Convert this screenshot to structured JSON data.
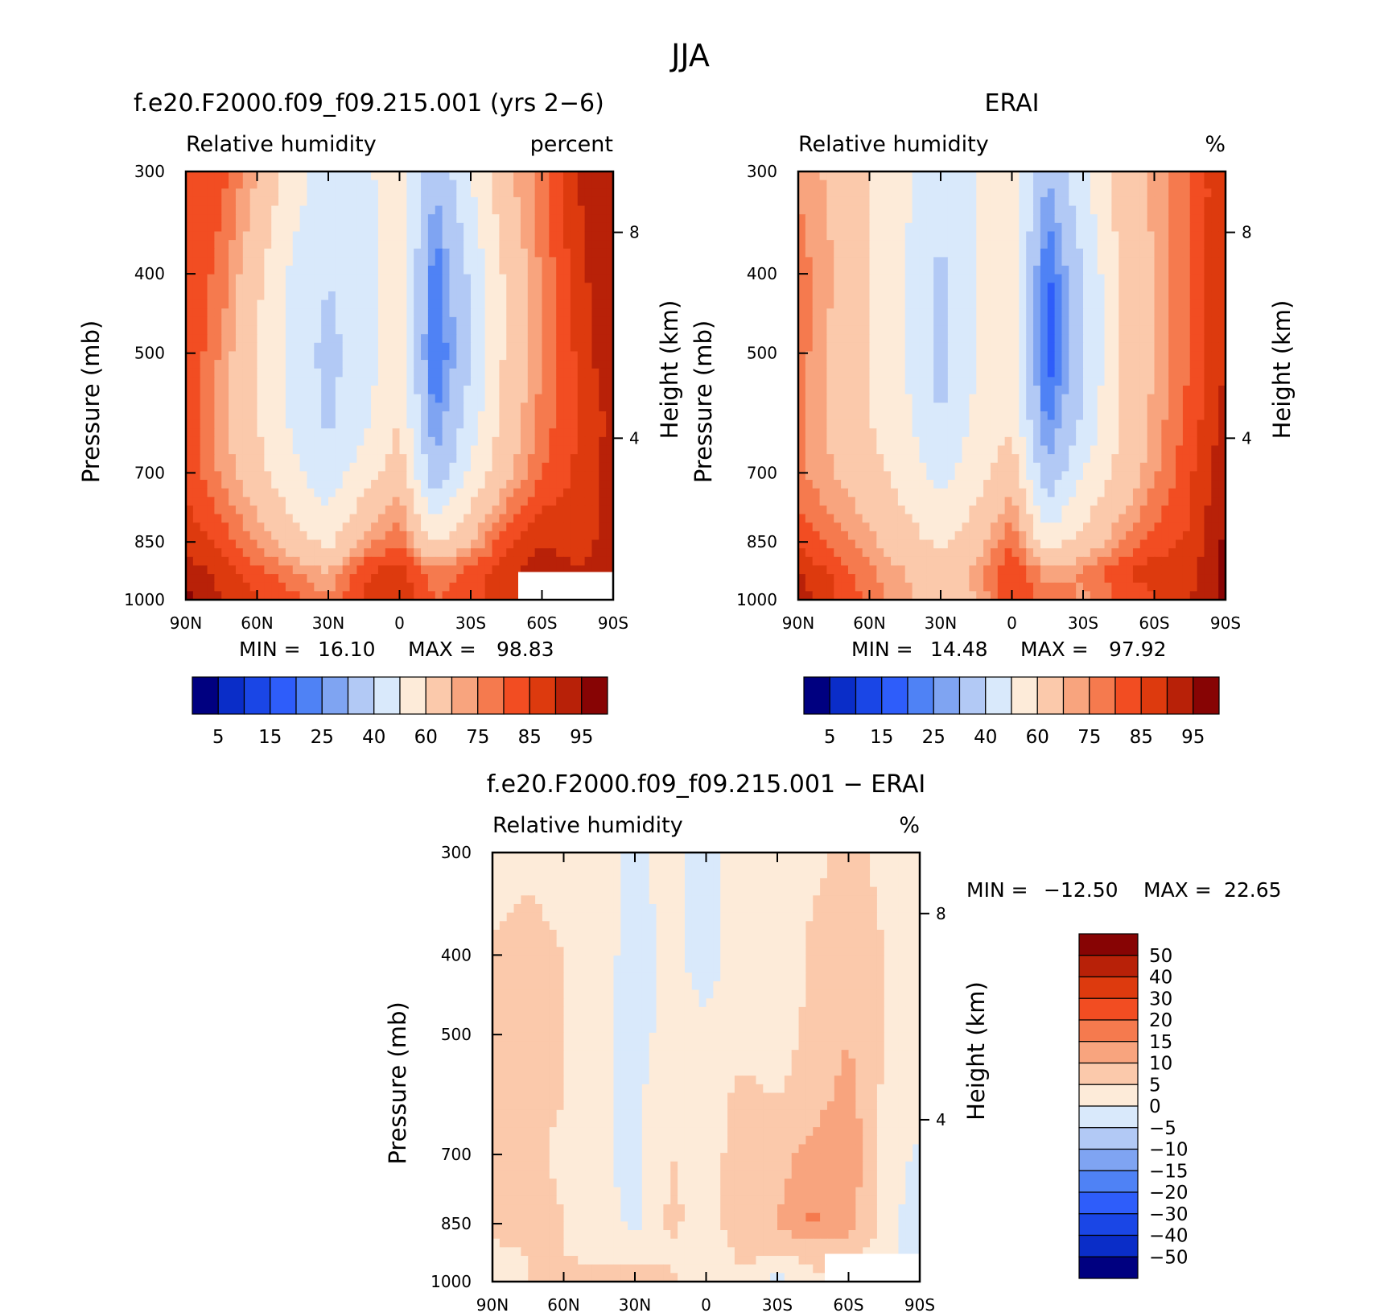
{
  "figure": {
    "title": "JJA",
    "ticks": {
      "lat_labels": [
        "90N",
        "60N",
        "30N",
        "0",
        "30S",
        "60S",
        "90S"
      ],
      "pressure_labels": [
        "300",
        "400",
        "500",
        "700",
        "850",
        "1000"
      ],
      "height_labels": [
        "8",
        "4"
      ]
    },
    "colors": {
      "model_palette": [
        "#000080",
        "#0a2dc8",
        "#1a46e6",
        "#2e5dfa",
        "#4f82f5",
        "#7fa4f2",
        "#b2c9f5",
        "#d9e9fb",
        "#fdebd9",
        "#fbc9ab",
        "#f8a47e",
        "#f57a4e",
        "#f24d22",
        "#dd3a0e",
        "#b82108",
        "#870404"
      ],
      "diff_palette": [
        "#000080",
        "#0a2dc8",
        "#1a46e6",
        "#2e5dfa",
        "#4f82f5",
        "#7fa4f2",
        "#b2c9f5",
        "#d9e9fb",
        "#fdebd9",
        "#fbc9ab",
        "#f8a47e",
        "#f57a4e",
        "#f24d22",
        "#dd3a0e",
        "#b82108",
        "#870404"
      ]
    }
  },
  "chart_data": [
    {
      "type": "heatmap",
      "title": "f.e20.F2000.f09_f09.215.001 (yrs 2−6)",
      "subtitle_left": "Relative humidity",
      "subtitle_right": "percent",
      "xlabel": "",
      "ylabel": "Pressure (mb)",
      "ylabel_right": "Height (km)",
      "stats": {
        "min_label": "MIN =",
        "min": "16.10",
        "max_label": "MAX =",
        "max": "98.83"
      },
      "colorbar_labels": [
        "5",
        "15",
        "25",
        "40",
        "60",
        "75",
        "85",
        "95"
      ],
      "levels": [
        5,
        10,
        15,
        20,
        25,
        30,
        40,
        50,
        60,
        70,
        75,
        80,
        85,
        90,
        95
      ],
      "lat": [
        90,
        75,
        60,
        45,
        30,
        15,
        0,
        -15,
        -30,
        -45,
        -60,
        -75,
        -90
      ],
      "pressure": [
        300,
        400,
        500,
        600,
        700,
        850,
        925,
        1000
      ],
      "values": [
        [
          80,
          82,
          70,
          55,
          45,
          48,
          55,
          32,
          50,
          68,
          78,
          90,
          95
        ],
        [
          85,
          78,
          62,
          48,
          40,
          45,
          57,
          20,
          42,
          62,
          76,
          88,
          95
        ],
        [
          86,
          74,
          60,
          46,
          37,
          45,
          57,
          18,
          40,
          62,
          75,
          86,
          95
        ],
        [
          86,
          72,
          60,
          48,
          38,
          48,
          60,
          24,
          45,
          64,
          77,
          85,
          92
        ],
        [
          84,
          74,
          64,
          52,
          44,
          55,
          66,
          32,
          52,
          68,
          80,
          86,
          92
        ],
        [
          88,
          84,
          74,
          65,
          57,
          72,
          80,
          58,
          70,
          84,
          90,
          88,
          92
        ],
        [
          93,
          88,
          82,
          76,
          70,
          84,
          88,
          76,
          82,
          88,
          93,
          90,
          92
        ],
        [
          97,
          90,
          86,
          82,
          76,
          86,
          88,
          80,
          84,
          86,
          90,
          90,
          92
        ]
      ]
    },
    {
      "type": "heatmap",
      "title": "ERAI",
      "subtitle_left": "Relative humidity",
      "subtitle_right": "%",
      "xlabel": "",
      "ylabel": "Pressure (mb)",
      "ylabel_right": "Height (km)",
      "stats": {
        "min_label": "MIN =",
        "min": "14.48",
        "max_label": "MAX =",
        "max": "97.92"
      },
      "colorbar_labels": [
        "5",
        "15",
        "25",
        "40",
        "60",
        "75",
        "85",
        "95"
      ],
      "levels": [
        5,
        10,
        15,
        20,
        25,
        30,
        40,
        50,
        60,
        70,
        75,
        80,
        85,
        90,
        95
      ],
      "lat": [
        90,
        75,
        60,
        45,
        30,
        15,
        0,
        -15,
        -30,
        -45,
        -60,
        -75,
        -90
      ],
      "pressure": [
        300,
        400,
        500,
        600,
        700,
        850,
        925,
        1000
      ],
      "values": [
        [
          74,
          68,
          60,
          52,
          44,
          50,
          58,
          30,
          48,
          64,
          72,
          80,
          90
        ],
        [
          78,
          70,
          60,
          50,
          38,
          50,
          56,
          18,
          40,
          60,
          70,
          80,
          90
        ],
        [
          78,
          68,
          60,
          50,
          36,
          50,
          56,
          16,
          38,
          60,
          70,
          80,
          90
        ],
        [
          76,
          68,
          60,
          52,
          40,
          52,
          58,
          22,
          42,
          60,
          72,
          82,
          92
        ],
        [
          76,
          70,
          64,
          56,
          46,
          56,
          66,
          32,
          50,
          62,
          74,
          84,
          94
        ],
        [
          84,
          78,
          72,
          64,
          58,
          66,
          80,
          54,
          64,
          74,
          82,
          86,
          96
        ],
        [
          90,
          84,
          76,
          70,
          64,
          72,
          86,
          72,
          76,
          84,
          88,
          88,
          97
        ],
        [
          94,
          86,
          78,
          72,
          66,
          70,
          84,
          78,
          74,
          80,
          84,
          90,
          97
        ]
      ]
    },
    {
      "type": "heatmap",
      "title": "f.e20.F2000.f09_f09.215.001 − ERAI",
      "subtitle_left": "Relative humidity",
      "subtitle_right": "%",
      "xlabel": "",
      "ylabel": "Pressure (mb)",
      "ylabel_right": "Height (km)",
      "stats": {
        "min_label": "MIN =",
        "min": "−12.50",
        "max_label": "MAX =",
        "max": "22.65"
      },
      "colorbar_labels": [
        "50",
        "40",
        "30",
        "20",
        "15",
        "10",
        "5",
        "0",
        "−5",
        "−10",
        "−15",
        "−20",
        "−30",
        "−40",
        "−50"
      ],
      "levels": [
        -50,
        -40,
        -30,
        -20,
        -15,
        -10,
        -5,
        0,
        5,
        10,
        15,
        20,
        30,
        40,
        50
      ],
      "lat": [
        90,
        75,
        60,
        45,
        30,
        15,
        0,
        -15,
        -30,
        -45,
        -60,
        -75,
        -90
      ],
      "pressure": [
        300,
        400,
        500,
        600,
        700,
        850,
        925,
        1000
      ],
      "values": [
        [
          2,
          4,
          3,
          2,
          -1,
          2,
          -2,
          2,
          2,
          4,
          6,
          4,
          2
        ],
        [
          6,
          7,
          5,
          2,
          -2,
          1,
          -2,
          2,
          2,
          6,
          8,
          5,
          4
        ],
        [
          8,
          7,
          5,
          1,
          -2,
          2,
          1,
          4,
          3,
          6,
          10,
          5,
          4
        ],
        [
          6,
          6,
          5,
          1,
          -1,
          3,
          3,
          6,
          5,
          8,
          12,
          4,
          2
        ],
        [
          7,
          6,
          4,
          1,
          -2,
          5,
          4,
          6,
          8,
          12,
          14,
          3,
          -1
        ],
        [
          6,
          8,
          5,
          2,
          -1,
          6,
          3,
          8,
          10,
          16,
          12,
          3,
          -4
        ],
        [
          4,
          5,
          5,
          3,
          3,
          4,
          2,
          6,
          6,
          6,
          6,
          3,
          -4
        ],
        [
          3,
          5,
          7,
          8,
          10,
          6,
          2,
          4,
          -2,
          4,
          6,
          2,
          -4
        ]
      ]
    }
  ]
}
